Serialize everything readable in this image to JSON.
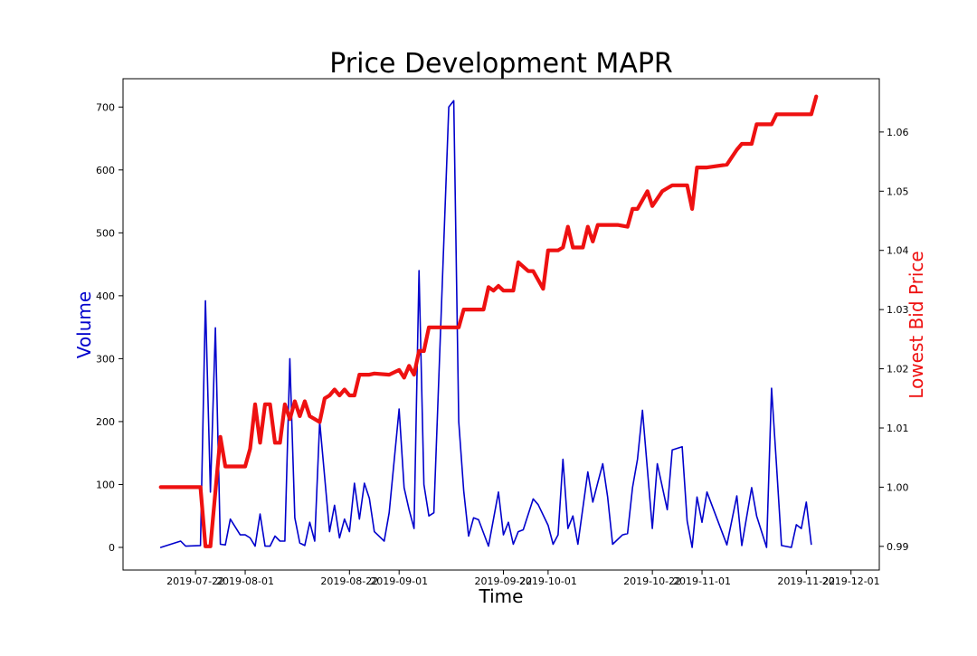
{
  "chart_data": {
    "type": "line",
    "title": "Price Development MAPR",
    "xlabel": "Time",
    "ylabel_left": "Volume",
    "ylabel_right": "Lowest Bid Price",
    "colors": {
      "volume": "#0000cc",
      "price": "#ee1111",
      "axes": "#000000"
    },
    "grid": false,
    "x_ticks": [
      "2019-07-22",
      "2019-08-01",
      "2019-08-22",
      "2019-09-01",
      "2019-09-22",
      "2019-10-01",
      "2019-10-22",
      "2019-11-01",
      "2019-11-22",
      "2019-12-01"
    ],
    "ylim_left": [
      -36,
      745
    ],
    "yticks_left": [
      0,
      100,
      200,
      300,
      400,
      500,
      600,
      700
    ],
    "ylim_right": [
      0.986,
      1.069
    ],
    "yticks_right": [
      0.99,
      1.0,
      1.01,
      1.02,
      1.03,
      1.04,
      1.05,
      1.06
    ],
    "series": [
      {
        "name": "Volume",
        "axis": "left",
        "points": [
          [
            "2019-07-15",
            0
          ],
          [
            "2019-07-19",
            10
          ],
          [
            "2019-07-20",
            2
          ],
          [
            "2019-07-23",
            3
          ],
          [
            "2019-07-24",
            392
          ],
          [
            "2019-07-25",
            88
          ],
          [
            "2019-07-26",
            349
          ],
          [
            "2019-07-27",
            5
          ],
          [
            "2019-07-28",
            4
          ],
          [
            "2019-07-29",
            45
          ],
          [
            "2019-07-31",
            20
          ],
          [
            "2019-08-01",
            20
          ],
          [
            "2019-08-02",
            15
          ],
          [
            "2019-08-03",
            2
          ],
          [
            "2019-08-04",
            53
          ],
          [
            "2019-08-05",
            2
          ],
          [
            "2019-08-06",
            2
          ],
          [
            "2019-08-07",
            18
          ],
          [
            "2019-08-08",
            10
          ],
          [
            "2019-08-09",
            10
          ],
          [
            "2019-08-10",
            300
          ],
          [
            "2019-08-11",
            47
          ],
          [
            "2019-08-12",
            7
          ],
          [
            "2019-08-13",
            3
          ],
          [
            "2019-08-14",
            40
          ],
          [
            "2019-08-15",
            10
          ],
          [
            "2019-08-16",
            200
          ],
          [
            "2019-08-18",
            25
          ],
          [
            "2019-08-19",
            67
          ],
          [
            "2019-08-20",
            15
          ],
          [
            "2019-08-21",
            45
          ],
          [
            "2019-08-22",
            25
          ],
          [
            "2019-08-23",
            102
          ],
          [
            "2019-08-24",
            45
          ],
          [
            "2019-08-25",
            102
          ],
          [
            "2019-08-26",
            78
          ],
          [
            "2019-08-27",
            25
          ],
          [
            "2019-08-29",
            10
          ],
          [
            "2019-08-30",
            55
          ],
          [
            "2019-09-01",
            220
          ],
          [
            "2019-09-02",
            95
          ],
          [
            "2019-09-03",
            60
          ],
          [
            "2019-09-04",
            30
          ],
          [
            "2019-09-05",
            440
          ],
          [
            "2019-09-06",
            100
          ],
          [
            "2019-09-07",
            50
          ],
          [
            "2019-09-08",
            55
          ],
          [
            "2019-09-11",
            700
          ],
          [
            "2019-09-12",
            710
          ],
          [
            "2019-09-13",
            200
          ],
          [
            "2019-09-14",
            90
          ],
          [
            "2019-09-15",
            18
          ],
          [
            "2019-09-16",
            47
          ],
          [
            "2019-09-17",
            44
          ],
          [
            "2019-09-19",
            2
          ],
          [
            "2019-09-21",
            88
          ],
          [
            "2019-09-22",
            20
          ],
          [
            "2019-09-23",
            40
          ],
          [
            "2019-09-24",
            5
          ],
          [
            "2019-09-25",
            25
          ],
          [
            "2019-09-26",
            28
          ],
          [
            "2019-09-28",
            77
          ],
          [
            "2019-09-29",
            68
          ],
          [
            "2019-10-01",
            35
          ],
          [
            "2019-10-02",
            5
          ],
          [
            "2019-10-03",
            20
          ],
          [
            "2019-10-04",
            140
          ],
          [
            "2019-10-05",
            30
          ],
          [
            "2019-10-06",
            50
          ],
          [
            "2019-10-07",
            5
          ],
          [
            "2019-10-09",
            120
          ],
          [
            "2019-10-10",
            72
          ],
          [
            "2019-10-11",
            103
          ],
          [
            "2019-10-12",
            133
          ],
          [
            "2019-10-13",
            80
          ],
          [
            "2019-10-14",
            5
          ],
          [
            "2019-10-16",
            20
          ],
          [
            "2019-10-17",
            22
          ],
          [
            "2019-10-18",
            95
          ],
          [
            "2019-10-19",
            140
          ],
          [
            "2019-10-20",
            218
          ],
          [
            "2019-10-22",
            30
          ],
          [
            "2019-10-23",
            133
          ],
          [
            "2019-10-25",
            60
          ],
          [
            "2019-10-26",
            155
          ],
          [
            "2019-10-28",
            160
          ],
          [
            "2019-10-29",
            42
          ],
          [
            "2019-10-30",
            0
          ],
          [
            "2019-10-31",
            80
          ],
          [
            "2019-11-01",
            40
          ],
          [
            "2019-11-02",
            88
          ],
          [
            "2019-11-06",
            4
          ],
          [
            "2019-11-08",
            82
          ],
          [
            "2019-11-09",
            3
          ],
          [
            "2019-11-11",
            95
          ],
          [
            "2019-11-12",
            50
          ],
          [
            "2019-11-14",
            0
          ],
          [
            "2019-11-15",
            253
          ],
          [
            "2019-11-16",
            130
          ],
          [
            "2019-11-17",
            3
          ],
          [
            "2019-11-19",
            0
          ],
          [
            "2019-11-20",
            36
          ],
          [
            "2019-11-21",
            30
          ],
          [
            "2019-11-22",
            72
          ],
          [
            "2019-11-23",
            5
          ]
        ]
      },
      {
        "name": "Lowest Bid Price",
        "axis": "right",
        "points": [
          [
            "2019-07-15",
            1.0
          ],
          [
            "2019-07-23",
            1.0
          ],
          [
            "2019-07-24",
            0.99
          ],
          [
            "2019-07-25",
            0.99
          ],
          [
            "2019-07-27",
            1.0085
          ],
          [
            "2019-07-28",
            1.0035
          ],
          [
            "2019-07-31",
            1.0035
          ],
          [
            "2019-08-01",
            1.0035
          ],
          [
            "2019-08-02",
            1.0065
          ],
          [
            "2019-08-03",
            1.014
          ],
          [
            "2019-08-04",
            1.0075
          ],
          [
            "2019-08-05",
            1.014
          ],
          [
            "2019-08-06",
            1.014
          ],
          [
            "2019-08-07",
            1.0075
          ],
          [
            "2019-08-08",
            1.0075
          ],
          [
            "2019-08-09",
            1.014
          ],
          [
            "2019-08-10",
            1.0115
          ],
          [
            "2019-08-11",
            1.0145
          ],
          [
            "2019-08-12",
            1.012
          ],
          [
            "2019-08-13",
            1.0145
          ],
          [
            "2019-08-14",
            1.012
          ],
          [
            "2019-08-16",
            1.011
          ],
          [
            "2019-08-17",
            1.015
          ],
          [
            "2019-08-18",
            1.0155
          ],
          [
            "2019-08-19",
            1.0165
          ],
          [
            "2019-08-20",
            1.0155
          ],
          [
            "2019-08-21",
            1.0165
          ],
          [
            "2019-08-22",
            1.0155
          ],
          [
            "2019-08-23",
            1.0155
          ],
          [
            "2019-08-24",
            1.019
          ],
          [
            "2019-08-26",
            1.019
          ],
          [
            "2019-08-27",
            1.0192
          ],
          [
            "2019-08-30",
            1.019
          ],
          [
            "2019-09-01",
            1.0198
          ],
          [
            "2019-09-02",
            1.0185
          ],
          [
            "2019-09-03",
            1.0205
          ],
          [
            "2019-09-04",
            1.019
          ],
          [
            "2019-09-05",
            1.023
          ],
          [
            "2019-09-06",
            1.023
          ],
          [
            "2019-09-07",
            1.027
          ],
          [
            "2019-09-13",
            1.027
          ],
          [
            "2019-09-14",
            1.03
          ],
          [
            "2019-09-18",
            1.03
          ],
          [
            "2019-09-19",
            1.0338
          ],
          [
            "2019-09-20",
            1.0332
          ],
          [
            "2019-09-21",
            1.034
          ],
          [
            "2019-09-22",
            1.0332
          ],
          [
            "2019-09-24",
            1.0332
          ],
          [
            "2019-09-25",
            1.038
          ],
          [
            "2019-09-27",
            1.0365
          ],
          [
            "2019-09-28",
            1.0365
          ],
          [
            "2019-09-30",
            1.0335
          ],
          [
            "2019-10-01",
            1.04
          ],
          [
            "2019-10-03",
            1.04
          ],
          [
            "2019-10-04",
            1.0405
          ],
          [
            "2019-10-05",
            1.044
          ],
          [
            "2019-10-06",
            1.0405
          ],
          [
            "2019-10-08",
            1.0405
          ],
          [
            "2019-10-09",
            1.044
          ],
          [
            "2019-10-10",
            1.0415
          ],
          [
            "2019-10-11",
            1.0443
          ],
          [
            "2019-10-15",
            1.0443
          ],
          [
            "2019-10-17",
            1.044
          ],
          [
            "2019-10-18",
            1.047
          ],
          [
            "2019-10-19",
            1.047
          ],
          [
            "2019-10-21",
            1.05
          ],
          [
            "2019-10-22",
            1.0475
          ],
          [
            "2019-10-24",
            1.05
          ],
          [
            "2019-10-25",
            1.0505
          ],
          [
            "2019-10-26",
            1.051
          ],
          [
            "2019-10-29",
            1.051
          ],
          [
            "2019-10-30",
            1.047
          ],
          [
            "2019-10-31",
            1.054
          ],
          [
            "2019-11-02",
            1.054
          ],
          [
            "2019-11-06",
            1.0545
          ],
          [
            "2019-11-08",
            1.057
          ],
          [
            "2019-11-09",
            1.058
          ],
          [
            "2019-11-11",
            1.058
          ],
          [
            "2019-11-12",
            1.0613
          ],
          [
            "2019-11-15",
            1.0613
          ],
          [
            "2019-11-16",
            1.063
          ],
          [
            "2019-11-23",
            1.063
          ],
          [
            "2019-11-24",
            1.066
          ]
        ]
      }
    ]
  }
}
